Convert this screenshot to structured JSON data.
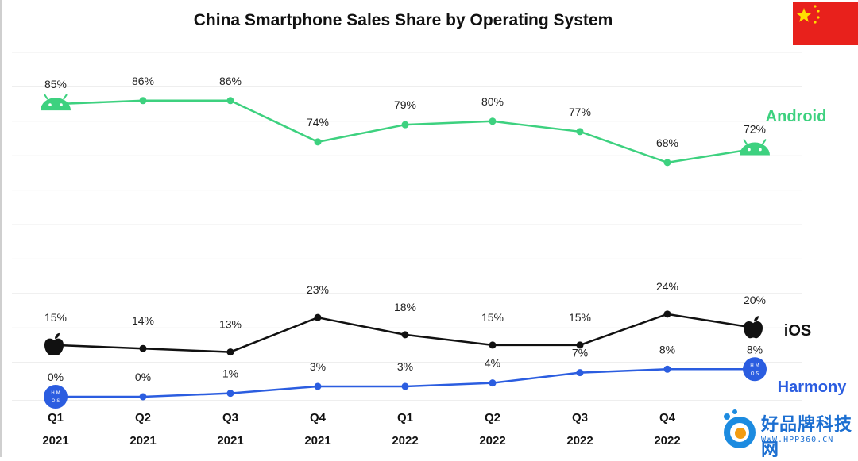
{
  "title": "China Smartphone Sales Share by Operating System",
  "colors": {
    "android": "#3dd17f",
    "ios": "#111111",
    "harmony": "#2b5de0",
    "grid": "#ececec"
  },
  "watermark": {
    "brand_text": "好品牌科技网",
    "url_text": "WWW.HPP360.CN"
  },
  "chart_data": {
    "type": "line",
    "title": "China Smartphone Sales Share by Operating System",
    "categories": [
      "Q1",
      "Q2",
      "Q3",
      "Q4",
      "Q1",
      "Q2",
      "Q3",
      "Q4",
      ""
    ],
    "years": [
      "2021",
      "2021",
      "2021",
      "2021",
      "2022",
      "2022",
      "2022",
      "2022",
      ""
    ],
    "series": [
      {
        "name": "Android",
        "labels": [
          "85%",
          "86%",
          "86%",
          "74%",
          "79%",
          "80%",
          "77%",
          "68%",
          "72%"
        ],
        "values": [
          85,
          86,
          86,
          74,
          79,
          80,
          77,
          68,
          72
        ]
      },
      {
        "name": "iOS",
        "labels": [
          "15%",
          "14%",
          "13%",
          "23%",
          "18%",
          "15%",
          "15%",
          "24%",
          "20%"
        ],
        "values": [
          15,
          14,
          13,
          23,
          18,
          15,
          15,
          24,
          20
        ]
      },
      {
        "name": "Harmony",
        "labels": [
          "0%",
          "0%",
          "1%",
          "3%",
          "3%",
          "4%",
          "7%",
          "8%",
          "8%"
        ],
        "values": [
          0,
          0,
          1,
          3,
          3,
          4,
          7,
          8,
          8
        ]
      }
    ],
    "ylim": [
      0,
      100
    ],
    "grid": true,
    "legend": "right, inline at line ends"
  }
}
